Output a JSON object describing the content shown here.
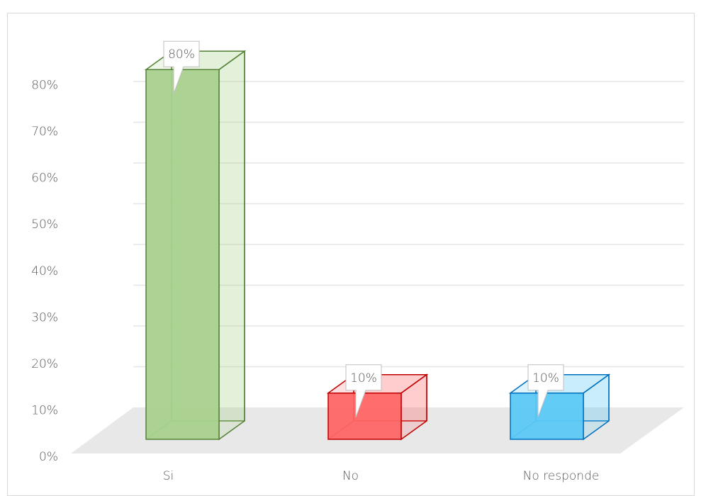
{
  "chart_data": {
    "type": "bar3d",
    "categories": [
      "Si",
      "No",
      "No responde"
    ],
    "values": [
      80,
      10,
      10
    ],
    "value_labels": [
      "80%",
      "10%",
      "10%"
    ],
    "colors": [
      "#a9d18e",
      "#ff6666",
      "#5bc8f5"
    ],
    "edge_colors": [
      "#548235",
      "#c00000",
      "#0070c0"
    ],
    "ylim": [
      0,
      90
    ],
    "yticks": [
      {
        "value": 0,
        "label": "0%"
      },
      {
        "value": 10,
        "label": "10%"
      },
      {
        "value": 20,
        "label": "20%"
      },
      {
        "value": 30,
        "label": "30%"
      },
      {
        "value": 40,
        "label": "40%"
      },
      {
        "value": 50,
        "label": "50%"
      },
      {
        "value": 60,
        "label": "60%"
      },
      {
        "value": 70,
        "label": "70%"
      },
      {
        "value": 80,
        "label": "80%"
      }
    ],
    "grid": true
  }
}
